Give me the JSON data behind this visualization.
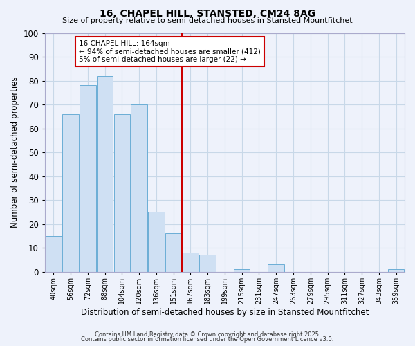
{
  "title": "16, CHAPEL HILL, STANSTED, CM24 8AG",
  "subtitle": "Size of property relative to semi-detached houses in Stansted Mountfitchet",
  "xlabel": "Distribution of semi-detached houses by size in Stansted Mountfitchet",
  "ylabel": "Number of semi-detached properties",
  "bar_labels": [
    "40sqm",
    "56sqm",
    "72sqm",
    "88sqm",
    "104sqm",
    "120sqm",
    "136sqm",
    "151sqm",
    "167sqm",
    "183sqm",
    "199sqm",
    "215sqm",
    "231sqm",
    "247sqm",
    "263sqm",
    "279sqm",
    "295sqm",
    "311sqm",
    "327sqm",
    "343sqm",
    "359sqm"
  ],
  "bar_values": [
    15,
    66,
    78,
    82,
    66,
    70,
    25,
    16,
    8,
    7,
    0,
    1,
    0,
    3,
    0,
    0,
    0,
    0,
    0,
    0,
    1
  ],
  "bar_color": "#cfe0f3",
  "bar_edge_color": "#6baed6",
  "ref_bar_index": 8,
  "ref_line_color": "#cc0000",
  "annotation_title": "16 CHAPEL HILL: 164sqm",
  "annotation_line1": "← 94% of semi-detached houses are smaller (412)",
  "annotation_line2": "5% of semi-detached houses are larger (22) →",
  "annotation_box_color": "white",
  "annotation_box_edge_color": "#cc0000",
  "ylim": [
    0,
    100
  ],
  "yticks": [
    0,
    10,
    20,
    30,
    40,
    50,
    60,
    70,
    80,
    90,
    100
  ],
  "grid_color": "#c8d8e8",
  "background_color": "#eef2fb",
  "footer1": "Contains HM Land Registry data © Crown copyright and database right 2025.",
  "footer2": "Contains public sector information licensed under the Open Government Licence v3.0.",
  "n_bars": 21
}
